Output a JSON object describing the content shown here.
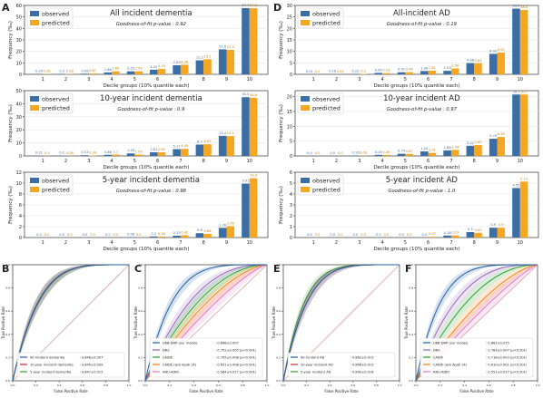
{
  "colors": {
    "observed": "#3a6ea5",
    "predicted": "#f5a623",
    "reference": "#d9a0a0"
  },
  "chart_data": [
    {
      "panel": "A",
      "type": "bar",
      "title": "All incident dementia",
      "subtitle": "Goodness-of-fit p-value : 0.92",
      "xlabel": "Decile groups (10% quantile each)",
      "ylabel": "Frequency (‰)",
      "categories": [
        "1",
        "2",
        "3",
        "4",
        "5",
        "6",
        "7",
        "8",
        "9",
        "10"
      ],
      "ylim": [
        0,
        60
      ],
      "yticks": [
        0,
        10,
        20,
        30,
        40,
        50,
        60
      ],
      "legend": "top-left",
      "series": [
        {
          "name": "observed",
          "values": [
            0.29,
            0.3,
            0.56,
            1.68,
            2.59,
            4.03,
            7.93,
            12.2,
            21.8,
            57.7
          ]
        },
        {
          "name": "predicted",
          "values": [
            0.26,
            0.28,
            0.67,
            2.65,
            2.59,
            4.74,
            8.34,
            13.2,
            21.3,
            57.6
          ]
        }
      ],
      "observed_labels": [
        "0.29",
        "0.3",
        "0.56",
        "1.68",
        "2.59",
        "4.03",
        "7.93",
        "12.2",
        "21.8",
        "57.7"
      ],
      "predicted_labels": [
        "0.26",
        "0.28",
        "0.67",
        "2.65",
        "2.59",
        "4.74",
        "8.34",
        "13.2",
        "21.3",
        "57.6"
      ]
    },
    {
      "panel": "A2",
      "type": "bar",
      "title": "10-year incident dementia",
      "subtitle": "Goodness-of-fit p-value : 0.9",
      "xlabel": "Decile groups (10% quantile each)",
      "ylabel": "Frequency (‰)",
      "categories": [
        "1",
        "2",
        "3",
        "4",
        "5",
        "6",
        "7",
        "8",
        "9",
        "10"
      ],
      "ylim": [
        0,
        50
      ],
      "yticks": [
        0,
        10,
        20,
        30,
        40,
        50
      ],
      "legend": "top-left",
      "series": [
        {
          "name": "observed",
          "values": [
            0.21,
            0.2,
            0.53,
            0.86,
            1.93,
            2.81,
            5.17,
            8.7,
            15.4,
            45.0
          ]
        },
        {
          "name": "predicted",
          "values": [
            0.1,
            0.08,
            0.34,
            1.1,
            1.09,
            2.82,
            5.43,
            8.93,
            15.2,
            44.6
          ]
        }
      ],
      "observed_labels": [
        "0.21",
        "0.2",
        "0.53",
        "0.86",
        "1.93",
        "2.81",
        "5.17",
        "8.7",
        "15.4",
        "45.0"
      ],
      "predicted_labels": [
        "0.1",
        "0.08",
        "0.34",
        "1.1",
        "1.09",
        "2.82",
        "5.43",
        "8.93",
        "15.2",
        "44.6"
      ]
    },
    {
      "panel": "A3",
      "type": "bar",
      "title": "5-year incident dementia",
      "subtitle": "Goodness-of-fit p-value : 0.98",
      "xlabel": "Decile groups (10% quantile each)",
      "ylabel": "Frequency (‰)",
      "categories": [
        "1",
        "2",
        "3",
        "4",
        "5",
        "6",
        "7",
        "8",
        "9",
        "10"
      ],
      "ylim": [
        0,
        12
      ],
      "yticks": [
        0,
        2,
        4,
        6,
        8,
        10,
        12
      ],
      "legend": "top-left",
      "series": [
        {
          "name": "observed",
          "values": [
            0.0,
            0.0,
            0.0,
            0.0,
            0.08,
            0.2,
            0.33,
            0.8,
            1.78,
            9.91
          ]
        },
        {
          "name": "predicted",
          "values": [
            0.0,
            0.0,
            0.0,
            0.0,
            0.0,
            0.16,
            0.42,
            0.68,
            2.09,
            10.9
          ]
        }
      ],
      "observed_labels": [
        "0.0",
        "0.0",
        "0.0",
        "0.0",
        "0.08",
        "0.2",
        "0.33",
        "0.8",
        "1.78",
        "9.91"
      ],
      "predicted_labels": [
        "0.0",
        "0.0",
        "0.0",
        "0.0",
        "0.0",
        "0.16",
        "0.42",
        "0.68",
        "2.09",
        "10.9"
      ]
    },
    {
      "panel": "D",
      "type": "bar",
      "title": "All-incident AD",
      "subtitle": "Goodness-of-fit p-value : 0.19",
      "xlabel": "Decile groups (10% quantile each)",
      "ylabel": "Frequency (‰)",
      "categories": [
        "1",
        "2",
        "3",
        "4",
        "5",
        "6",
        "7",
        "8",
        "9",
        "10"
      ],
      "ylim": [
        0,
        30
      ],
      "yticks": [
        0,
        5,
        10,
        15,
        20,
        25,
        30
      ],
      "legend": "top-left",
      "series": [
        {
          "name": "observed",
          "values": [
            0.01,
            0.16,
            0.22,
            0.62,
            0.91,
            1.44,
            1.53,
            4.88,
            8.93,
            28.6
          ]
        },
        {
          "name": "predicted",
          "values": [
            0.0,
            0.02,
            0.2,
            0.53,
            0.94,
            1.61,
            2.58,
            4.83,
            9.52,
            28.0
          ]
        }
      ],
      "observed_labels": [
        "0.01",
        "0.16",
        "0.22",
        "0.62",
        "0.91",
        "1.44",
        "1.53",
        "4.88",
        "8.93",
        "28.6"
      ],
      "predicted_labels": [
        "0.0",
        "0.02",
        "0.2",
        "0.53",
        "0.94",
        "1.61",
        "2.58",
        "4.83",
        "9.52",
        "28.0"
      ]
    },
    {
      "panel": "D2",
      "type": "bar",
      "title": "10-year incident AD",
      "subtitle": "Goodness-of-fit p-value : 0.97",
      "xlabel": "Decile groups (10% quantile each)",
      "ylabel": "Frequency (‰)",
      "categories": [
        "1",
        "2",
        "3",
        "4",
        "5",
        "6",
        "7",
        "8",
        "9",
        "10"
      ],
      "ylim": [
        0,
        22
      ],
      "yticks": [
        0,
        5,
        10,
        15,
        20
      ],
      "legend": "top-left",
      "series": [
        {
          "name": "observed",
          "values": [
            0.0,
            0.0,
            0.16,
            0.35,
            0.74,
            1.54,
            1.88,
            3.42,
            5.79,
            20.7
          ]
        },
        {
          "name": "predicted",
          "values": [
            0.0,
            0.0,
            0.09,
            0.36,
            0.67,
            1.01,
            2.04,
            3.65,
            6.39,
            20.7
          ]
        }
      ],
      "observed_labels": [
        "0.0",
        "0.0",
        "0.16",
        "0.35",
        "0.74",
        "1.54",
        "1.88",
        "3.42",
        "5.79",
        "20.7"
      ],
      "predicted_labels": [
        "0.0",
        "0.0",
        "0.09",
        "0.36",
        "0.67",
        "1.01",
        "2.04",
        "3.65",
        "6.39",
        "20.7"
      ]
    },
    {
      "panel": "D3",
      "type": "bar",
      "title": "5-year incident AD",
      "subtitle": "Goodness-of-fit p-value : 1.0",
      "xlabel": "Decile groups (10% quantile each)",
      "ylabel": "Frequency (‰)",
      "categories": [
        "1",
        "2",
        "3",
        "4",
        "5",
        "6",
        "7",
        "8",
        "9",
        "10"
      ],
      "ylim": [
        0,
        6
      ],
      "yticks": [
        0,
        1,
        2,
        3,
        4,
        5,
        6
      ],
      "legend": "top-left",
      "series": [
        {
          "name": "observed",
          "values": [
            0.0,
            0.0,
            0.0,
            0.0,
            0.0,
            0.0,
            0.18,
            0.5,
            0.9,
            4.55
          ]
        },
        {
          "name": "predicted",
          "values": [
            0.0,
            0.0,
            0.0,
            0.0,
            0.0,
            0.07,
            0.19,
            0.43,
            0.9,
            5.14
          ]
        }
      ],
      "observed_labels": [
        "0.0",
        "0.0",
        "0.0",
        "0.0",
        "0.0",
        "0.0",
        "0.18",
        "0.5",
        "0.9",
        "4.55"
      ],
      "predicted_labels": [
        "0.0",
        "0.0",
        "0.0",
        "0.0",
        "0.0",
        "0.07",
        "0.19",
        "0.43",
        "0.9",
        "5.14"
      ]
    },
    {
      "panel": "B",
      "type": "line",
      "xlabel": "False Positive Rate",
      "ylabel": "True Positive Rate",
      "xlim": [
        0,
        1
      ],
      "ylim": [
        0,
        1
      ],
      "legend": "bottom-right",
      "series": [
        {
          "name": "All incident dementia",
          "label": ": 0.848±0.007",
          "color": "#1f5fa8",
          "shape": 4.6
        },
        {
          "name": "10-year incident dementia",
          "label": ": 0.849±0.009",
          "color": "#d62728",
          "shape": 4.6
        },
        {
          "name": "5-year incident dementia",
          "label": ": 0.847±0.015",
          "color": "#2ca02c",
          "shape": 4.5
        }
      ]
    },
    {
      "panel": "C",
      "type": "line",
      "xlabel": "False Positive Rate",
      "ylabel": "True Positive Rate",
      "xlim": [
        0,
        1
      ],
      "ylim": [
        0,
        1
      ],
      "legend": "bottom-right",
      "series": [
        {
          "name": "UKB-DRP (our model)",
          "label": ": 0.848±0.007",
          "color": "#1f5fa8",
          "shape": 4.6
        },
        {
          "name": "DRS",
          "label": ": 0.752±0.005 (p<0.001)",
          "color": "#9467bd",
          "shape": 2.5
        },
        {
          "name": "CAIDE",
          "label": ": 0.705±0.008 (p<0.001)",
          "color": "#2ca02c",
          "shape": 2.0
        },
        {
          "name": "CAIDE (w/o ApoE ε4)",
          "label": ": 0.651±0.008 (p<0.001)",
          "color": "#ff7f0e",
          "shape": 1.6
        },
        {
          "name": "ANU-ADRI",
          "label": ": 0.584±0.017 (p<0.001)",
          "color": "#e377c2",
          "shape": 1.3
        }
      ]
    },
    {
      "panel": "E",
      "type": "line",
      "xlabel": "False Positive Rate",
      "ylabel": "True Positive Rate",
      "xlim": [
        0,
        1
      ],
      "ylim": [
        0,
        1
      ],
      "legend": "bottom-right",
      "series": [
        {
          "name": "All incident AD",
          "label": ": 0.862±0.015",
          "color": "#1f5fa8",
          "shape": 5.0
        },
        {
          "name": "10-year incident AD",
          "label": ": 0.866±0.015",
          "color": "#d62728",
          "shape": 5.0
        },
        {
          "name": "5-year incident AD",
          "label": ": 0.890±0.018",
          "color": "#2ca02c",
          "shape": 5.6
        }
      ]
    },
    {
      "panel": "F",
      "type": "line",
      "xlabel": "False Positive Rate",
      "ylabel": "True Positive Rate",
      "xlim": [
        0,
        1
      ],
      "ylim": [
        0,
        1
      ],
      "legend": "bottom-right",
      "series": [
        {
          "name": "UKB-DRP (our model)",
          "label": ": 0.862±0.015",
          "color": "#1f5fa8",
          "shape": 5.0
        },
        {
          "name": "DRS",
          "label": ": 0.783±0.007 (p<0.001)",
          "color": "#9467bd",
          "shape": 2.9
        },
        {
          "name": "CAIDE",
          "label": ": 0.718±0.003 (p<0.001)",
          "color": "#2ca02c",
          "shape": 2.1
        },
        {
          "name": "CAIDE (w/o ApoE ε4)",
          "label": ": 0.610±0.001 (p<0.001)",
          "color": "#ff7f0e",
          "shape": 1.5
        },
        {
          "name": "ANU-ADRI",
          "label": ": 0.551±0.017 (p<0.001)",
          "color": "#e377c2",
          "shape": 1.2
        }
      ]
    }
  ],
  "panel_letters": [
    "A",
    "B",
    "C",
    "D",
    "E",
    "F"
  ]
}
